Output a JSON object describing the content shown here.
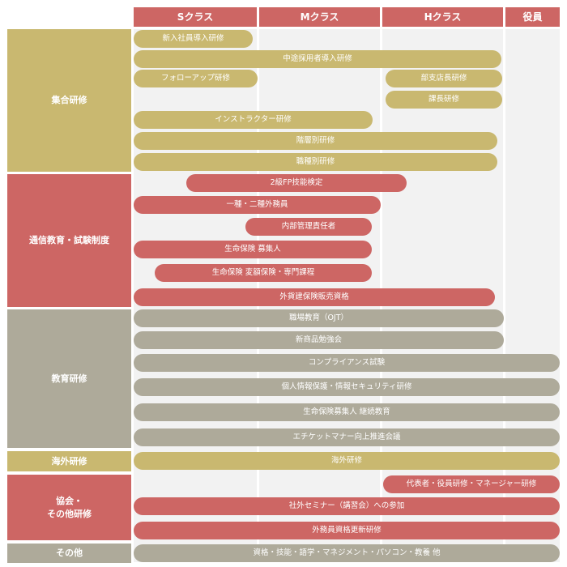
{
  "colors": {
    "gold": "#c9b870",
    "red": "#cd6664",
    "gray": "#aeaa9a",
    "column_bg": "#f2f2f2"
  },
  "headers": [
    "Sクラス",
    "Mクラス",
    "Hクラス",
    "役員"
  ],
  "categories": {
    "group": "集合研修",
    "correspondence": "通信教育・試験制度",
    "education": "教育研修",
    "overseas": "海外研修",
    "association": "協会・\nその他研修",
    "other": "その他"
  },
  "bars": {
    "new_hire": "新入社員導入研修",
    "mid_career": "中途採用者導入研修",
    "follow_up": "フォローアップ研修",
    "branch_manager": "部支店長研修",
    "section_manager": "課長研修",
    "instructor": "インストラクター研修",
    "tiered": "階層別研修",
    "job_type": "職種別研修",
    "fp2": "2級FP技能検定",
    "sales_rep": "一種・二種外務員",
    "compliance_officer": "内部管理責任者",
    "life_recruiter": "生命保険 募集人",
    "life_variable": "生命保険 変額保険・専門課程",
    "foreign_insurance": "外貨建保険販売資格",
    "ojt": "職場教育（OJT）",
    "product_study": "新商品勉強会",
    "compliance_exam": "コンプライアンス試験",
    "info_security": "個人情報保護・情報セキュリティ研修",
    "life_continuing": "生命保険募集人 継続教育",
    "etiquette": "エチケットマナー向上推進会議",
    "overseas_training": "海外研修",
    "executive": "代表者・役員研修・マネージャー研修",
    "external_seminar": "社外セミナー（講習会）への参加",
    "sales_renewal": "外務員資格更新研修",
    "misc": "資格・技能・語学・マネジメント・パソコン・教養 他"
  }
}
